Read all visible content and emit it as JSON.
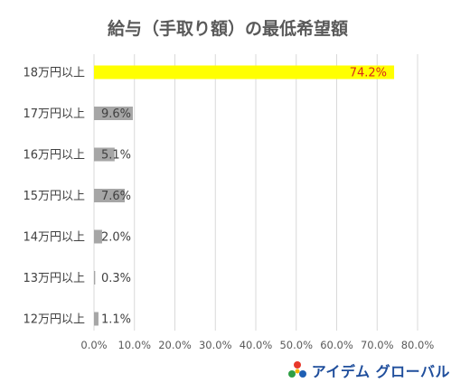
{
  "chart_data": {
    "type": "bar",
    "orientation": "horizontal",
    "title": "給与（手取り額）の最低希望額",
    "categories": [
      "18万円以上",
      "17万円以上",
      "16万円以上",
      "15万円以上",
      "14万円以上",
      "13万円以上",
      "12万円以上"
    ],
    "values": [
      74.2,
      9.6,
      5.1,
      7.6,
      2.0,
      0.3,
      1.1
    ],
    "data_labels": [
      "74.2%",
      "9.6%",
      "5.1%",
      "7.6%",
      "2.0%",
      "0.3%",
      "1.1%"
    ],
    "highlight_index": 0,
    "xlim": [
      0,
      80
    ],
    "x_ticks": [
      "0.0%",
      "10.0%",
      "20.0%",
      "30.0%",
      "40.0%",
      "50.0%",
      "60.0%",
      "70.0%",
      "80.0%"
    ],
    "grid": true,
    "colors": {
      "bar": "#a6a6a6",
      "highlight_bar": "#ffff00",
      "highlight_label": "#d9261c",
      "grid": "#d9d9d9"
    }
  },
  "logo": {
    "text": "アイデム グローバル",
    "icon": "aidem-logo-icon"
  }
}
